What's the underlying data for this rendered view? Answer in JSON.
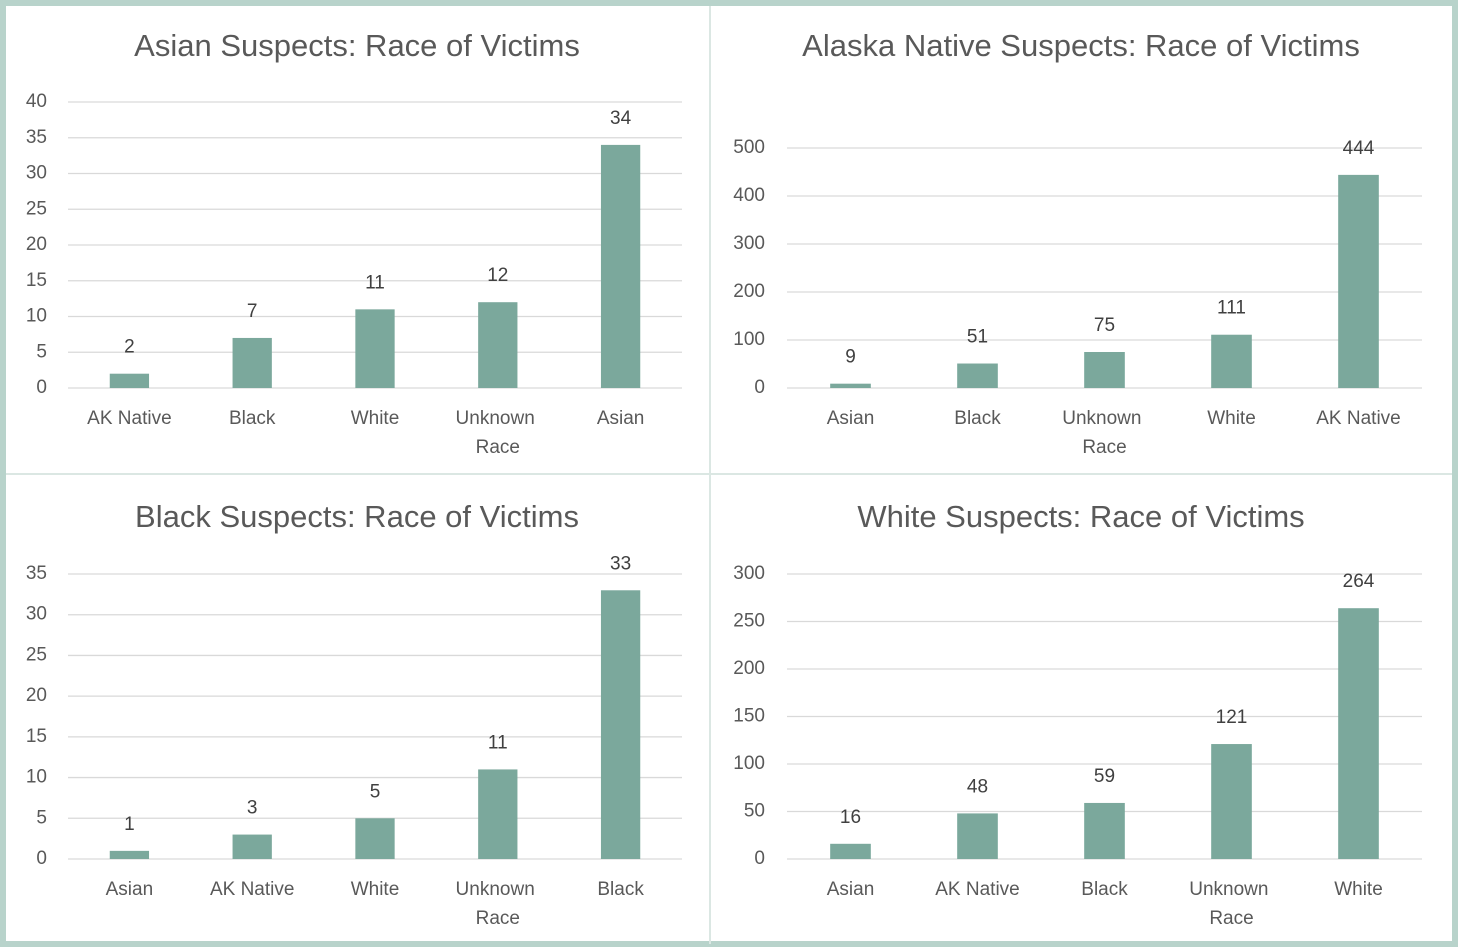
{
  "chart_data": [
    {
      "type": "bar",
      "title": "Asian Suspects: Race of Victims",
      "categories": [
        "AK Native",
        "Black",
        "White",
        "Unknown Race",
        "Asian"
      ],
      "values": [
        2,
        7,
        11,
        12,
        34
      ],
      "color": "#7ba89c",
      "ylim": [
        0,
        40
      ],
      "yticks": [
        0,
        5,
        10,
        15,
        20,
        25,
        30,
        35,
        40
      ],
      "grid": true
    },
    {
      "type": "bar",
      "title": "Alaska Native Suspects: Race of Victims",
      "categories": [
        "Asian",
        "Black",
        "Unknown Race",
        "White",
        "AK Native"
      ],
      "values": [
        9,
        51,
        75,
        111,
        444
      ],
      "color": "#7ba89c",
      "ylim": [
        0,
        500
      ],
      "yticks": [
        0,
        100,
        200,
        300,
        400,
        500
      ],
      "grid": true
    },
    {
      "type": "bar",
      "title": "Black Suspects: Race of Victims",
      "categories": [
        "Asian",
        "AK Native",
        "White",
        "Unknown Race",
        "Black"
      ],
      "values": [
        1,
        3,
        5,
        11,
        33
      ],
      "color": "#7ba89c",
      "ylim": [
        0,
        35
      ],
      "yticks": [
        0,
        5,
        10,
        15,
        20,
        25,
        30,
        35
      ],
      "grid": true
    },
    {
      "type": "bar",
      "title": "White Suspects: Race of Victims",
      "categories": [
        "Asian",
        "AK Native",
        "Black",
        "Unknown Race",
        "White"
      ],
      "values": [
        16,
        48,
        59,
        121,
        264
      ],
      "color": "#7ba89c",
      "ylim": [
        0,
        300
      ],
      "yticks": [
        0,
        50,
        100,
        150,
        200,
        250,
        300
      ],
      "grid": true
    }
  ]
}
